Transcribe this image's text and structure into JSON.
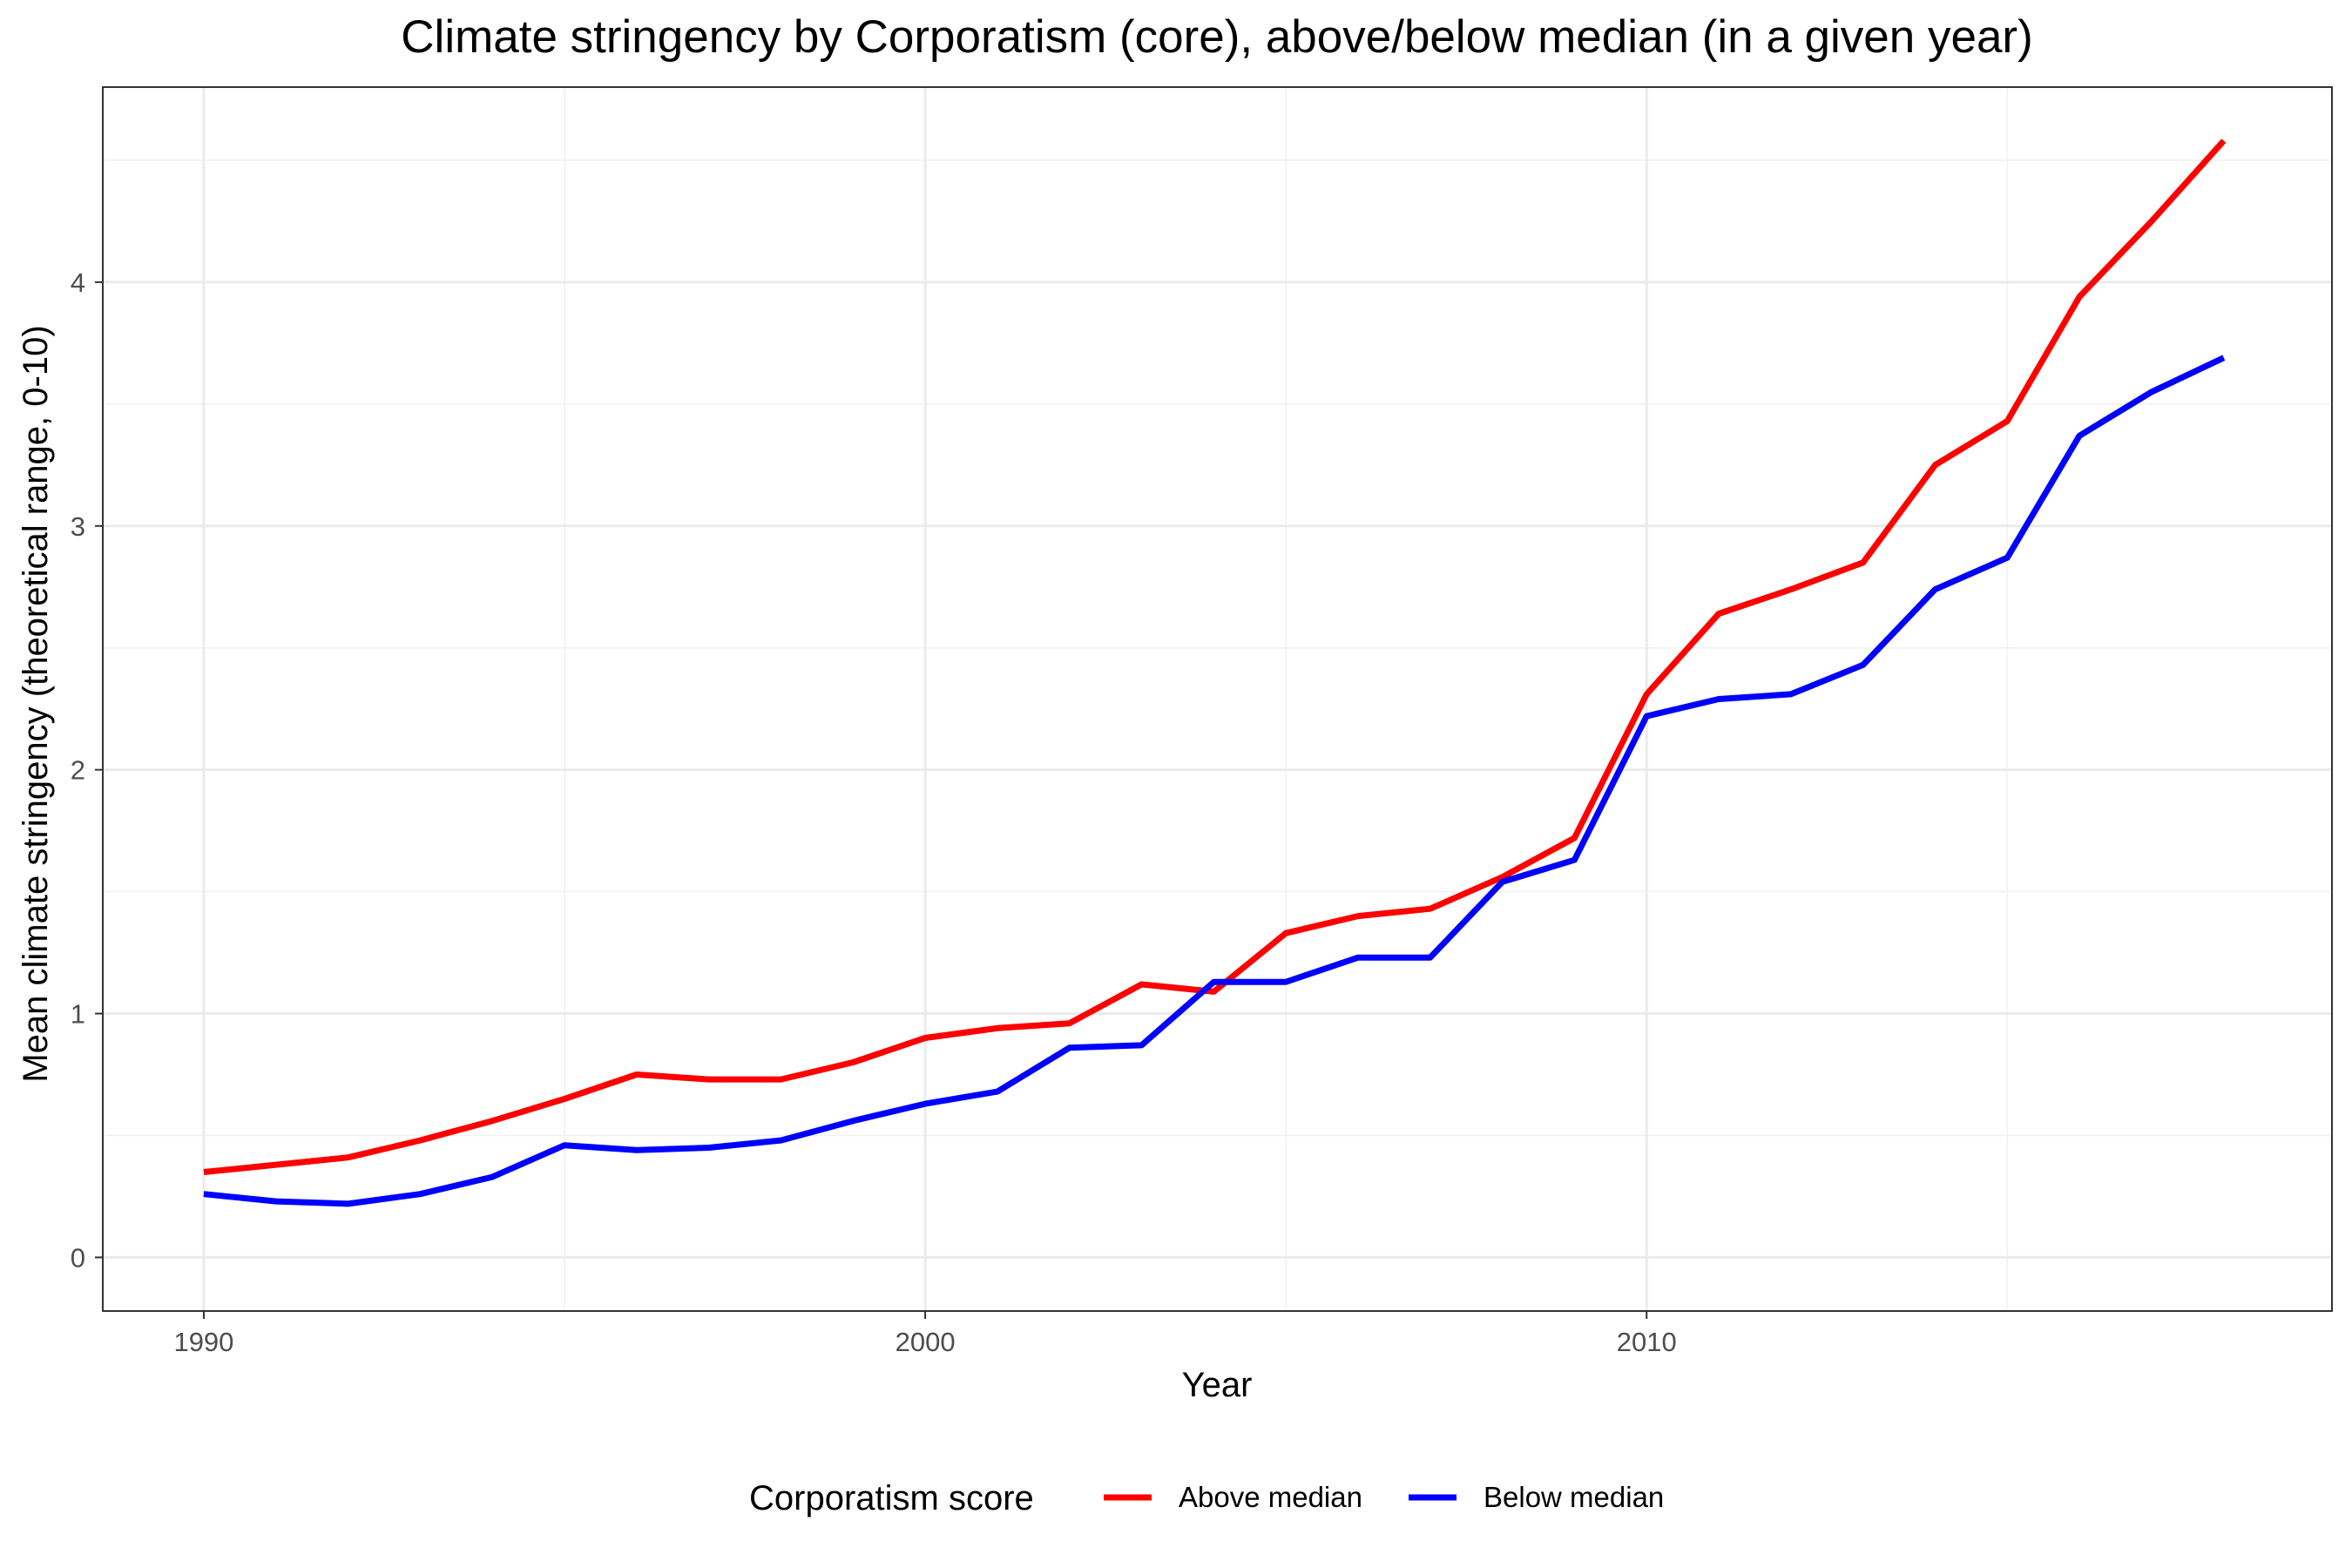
{
  "chart_data": {
    "type": "line",
    "title": "Climate stringency by Corporatism (core), above/below median (in a given year)",
    "xlabel": "Year",
    "ylabel": "Mean climate stringency (theoretical range, 0-10)",
    "xlim": [
      1988.6,
      2019.5
    ],
    "ylim": [
      -0.22,
      4.8
    ],
    "x_ticks": [
      1990,
      2000,
      2010
    ],
    "y_ticks": [
      0,
      1,
      2,
      3,
      4
    ],
    "grid": true,
    "legend": {
      "title": "Corporatism score",
      "position": "bottom"
    },
    "x": [
      1990,
      1991,
      1992,
      1993,
      1994,
      1995,
      1996,
      1997,
      1998,
      1999,
      2000,
      2001,
      2002,
      2003,
      2004,
      2005,
      2006,
      2007,
      2008,
      2009,
      2010,
      2011,
      2012,
      2013,
      2014,
      2015,
      2016,
      2017,
      2018
    ],
    "series": [
      {
        "name": "Above median",
        "color": "#ff0000",
        "values": [
          0.35,
          0.38,
          0.41,
          0.48,
          0.56,
          0.65,
          0.75,
          0.73,
          0.73,
          0.8,
          0.9,
          0.94,
          0.96,
          1.12,
          1.09,
          1.33,
          1.4,
          1.43,
          1.56,
          1.72,
          2.31,
          2.64,
          2.74,
          2.85,
          3.25,
          3.43,
          3.94,
          4.25,
          4.58
        ]
      },
      {
        "name": "Below median",
        "color": "#0000ff",
        "values": [
          0.26,
          0.23,
          0.22,
          0.26,
          0.33,
          0.46,
          0.44,
          0.45,
          0.48,
          0.56,
          0.63,
          0.68,
          0.86,
          0.87,
          1.13,
          1.13,
          1.23,
          1.23,
          1.54,
          1.63,
          2.22,
          2.29,
          2.31,
          2.43,
          2.74,
          2.87,
          3.37,
          3.55,
          3.69
        ]
      }
    ]
  }
}
